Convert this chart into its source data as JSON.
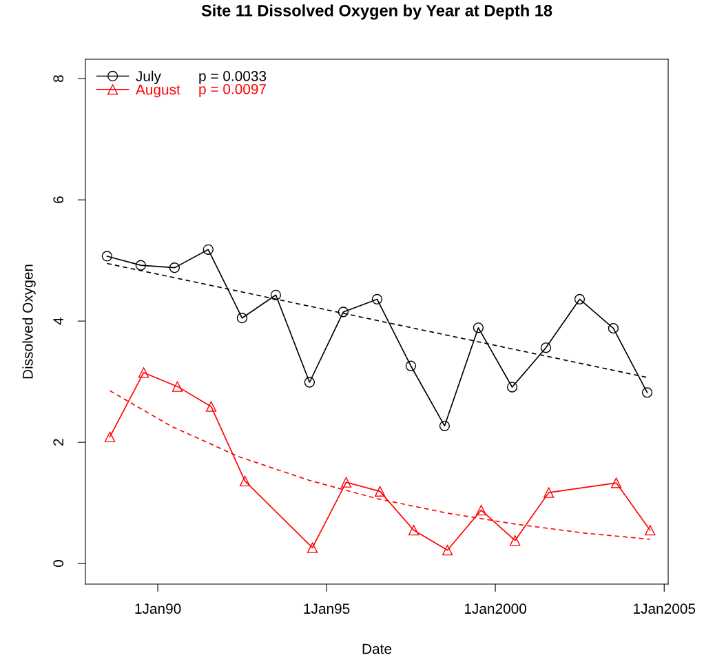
{
  "chart_data": {
    "type": "line",
    "title": "Site 11 Dissolved Oxygen by Year at Depth 18",
    "xlabel": "Date",
    "ylabel": "Dissolved Oxygen",
    "xlim": [
      "1987-11-10",
      "2005-02-13"
    ],
    "xticks": [
      {
        "value": "1990-01-01",
        "label": "1Jan90"
      },
      {
        "value": "1995-01-01",
        "label": "1Jan95"
      },
      {
        "value": "2000-01-01",
        "label": "1Jan2000"
      },
      {
        "value": "2005-01-01",
        "label": "1Jan2005"
      }
    ],
    "ylim": [
      -0.34,
      8.32
    ],
    "yticks": [
      0,
      2,
      4,
      6,
      8
    ],
    "grid": false,
    "legend": "top left",
    "annotations": [
      "p = 0.0033",
      "p = 0.0097"
    ],
    "series": [
      {
        "name": "July",
        "color": "#000000",
        "marker": "circle",
        "line_style": "solid",
        "x": [
          "1988-07",
          "1989-07",
          "1990-07",
          "1991-07",
          "1992-07",
          "1993-07",
          "1994-07",
          "1995-07",
          "1996-07",
          "1997-07",
          "1998-07",
          "1999-07",
          "2000-07",
          "2001-07",
          "2002-07",
          "2003-07",
          "2004-07"
        ],
        "values": [
          5.07,
          4.92,
          4.88,
          5.18,
          4.05,
          4.43,
          2.99,
          4.15,
          4.36,
          3.26,
          2.27,
          3.89,
          2.91,
          3.56,
          4.36,
          3.88,
          2.82
        ]
      },
      {
        "name": "August",
        "color": "#ff0000",
        "marker": "triangle",
        "line_style": "solid",
        "x": [
          "1988-08",
          "1989-08",
          "1990-08",
          "1991-08",
          "1992-08",
          "1994-08",
          "1995-08",
          "1996-08",
          "1997-08",
          "1998-08",
          "1999-08",
          "2000-08",
          "2001-08",
          "2003-08",
          "2004-08"
        ],
        "values": [
          2.09,
          3.15,
          2.92,
          2.59,
          1.36,
          0.26,
          1.34,
          1.19,
          0.55,
          0.22,
          0.88,
          0.38,
          1.17,
          1.33,
          0.55
        ]
      },
      {
        "color": "#000000",
        "marker": "none",
        "line_style": "dashed",
        "x": [
          "1988-07",
          "2004-07"
        ],
        "values": [
          4.95,
          3.07
        ]
      },
      {
        "color": "#ff0000",
        "marker": "none",
        "line_style": "dashed",
        "x": [
          "1988-08",
          "1990-06",
          "1992-06",
          "1994-07",
          "1996-07",
          "1998-08",
          "2000-08",
          "2002-09",
          "2004-08"
        ],
        "values": [
          2.85,
          2.26,
          1.76,
          1.37,
          1.07,
          0.83,
          0.65,
          0.5,
          0.4
        ]
      }
    ]
  }
}
